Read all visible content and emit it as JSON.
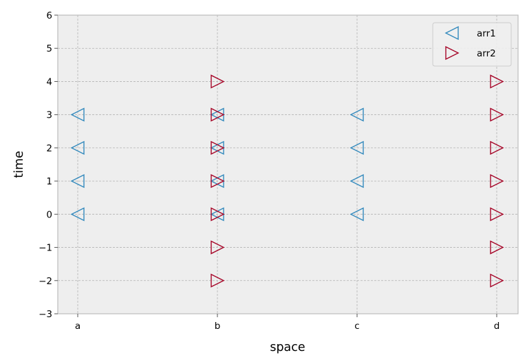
{
  "chart_data": {
    "type": "scatter",
    "title": "",
    "xlabel": "space",
    "ylabel": "time",
    "categories": [
      "a",
      "b",
      "c",
      "d"
    ],
    "ylim": [
      -3,
      6
    ],
    "yticks": [
      -3,
      -2,
      -1,
      0,
      1,
      2,
      3,
      4,
      5,
      6
    ],
    "grid": true,
    "legend_position": "top-right",
    "background": "#EEEEEE",
    "series": [
      {
        "name": "arr1",
        "marker": "triangle-left",
        "color": "#348ABD",
        "points": [
          {
            "x": "a",
            "y": 0
          },
          {
            "x": "a",
            "y": 1
          },
          {
            "x": "a",
            "y": 2
          },
          {
            "x": "a",
            "y": 3
          },
          {
            "x": "b",
            "y": 0
          },
          {
            "x": "b",
            "y": 1
          },
          {
            "x": "b",
            "y": 2
          },
          {
            "x": "b",
            "y": 3
          },
          {
            "x": "c",
            "y": 0
          },
          {
            "x": "c",
            "y": 1
          },
          {
            "x": "c",
            "y": 2
          },
          {
            "x": "c",
            "y": 3
          }
        ]
      },
      {
        "name": "arr2",
        "marker": "triangle-right",
        "color": "#A60628",
        "points": [
          {
            "x": "b",
            "y": -2
          },
          {
            "x": "b",
            "y": -1
          },
          {
            "x": "b",
            "y": 0
          },
          {
            "x": "b",
            "y": 1
          },
          {
            "x": "b",
            "y": 2
          },
          {
            "x": "b",
            "y": 3
          },
          {
            "x": "b",
            "y": 4
          },
          {
            "x": "d",
            "y": -2
          },
          {
            "x": "d",
            "y": -1
          },
          {
            "x": "d",
            "y": 0
          },
          {
            "x": "d",
            "y": 1
          },
          {
            "x": "d",
            "y": 2
          },
          {
            "x": "d",
            "y": 3
          },
          {
            "x": "d",
            "y": 4
          }
        ]
      }
    ]
  }
}
